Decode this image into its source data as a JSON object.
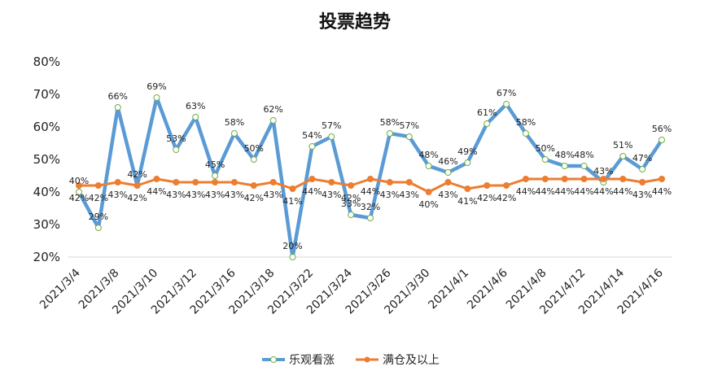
{
  "chart_data": {
    "type": "line",
    "title": "投票趋势",
    "xlabel": "",
    "ylabel": "",
    "ylim": [
      20,
      80
    ],
    "y_ticks": [
      "20%",
      "30%",
      "40%",
      "50%",
      "60%",
      "70%",
      "80%"
    ],
    "x_tick_labels": [
      "2021/3/4",
      "2021/3/8",
      "2021/3/10",
      "2021/3/12",
      "2021/3/16",
      "2021/3/18",
      "2021/3/22",
      "2021/3/24",
      "2021/3/26",
      "2021/3/30",
      "2021/4/1",
      "2021/4/6",
      "2021/4/8",
      "2021/4/12",
      "2021/4/14",
      "2021/4/16"
    ],
    "grid": false,
    "legend_position": "bottom",
    "series": [
      {
        "name": "乐观看涨",
        "color": "#5b9bd5",
        "values": [
          40,
          29,
          66,
          42,
          69,
          53,
          63,
          45,
          58,
          50,
          62,
          20,
          54,
          57,
          33,
          32,
          58,
          57,
          48,
          46,
          49,
          61,
          67,
          58,
          50,
          48,
          48,
          43,
          51,
          47,
          56
        ],
        "labels": [
          "40%",
          "29%",
          "66%",
          "42%",
          "69%",
          "53%",
          "63%",
          "45%",
          "58%",
          "50%",
          "62%",
          "20%",
          "54%",
          "57%",
          "33%",
          "32%",
          "58%",
          "57%",
          "48%",
          "46%",
          "49%",
          "61%",
          "67%",
          "58%",
          "50%",
          "48%",
          "48%",
          "43%",
          "51%",
          "47%",
          "56%"
        ]
      },
      {
        "name": "满仓及以上",
        "color": "#ed7d31",
        "values": [
          42,
          42,
          43,
          42,
          44,
          43,
          43,
          43,
          43,
          42,
          43,
          41,
          44,
          43,
          42,
          44,
          43,
          43,
          40,
          43,
          41,
          42,
          42,
          44,
          44,
          44,
          44,
          44,
          44,
          43,
          44
        ],
        "labels": [
          "42%",
          "42%",
          "43%",
          "42%",
          "44%",
          "43%",
          "43%",
          "43%",
          "43%",
          "42%",
          "43%",
          "41%",
          "44%",
          "43%",
          "42%",
          "44%",
          "43%",
          "43%",
          "40%",
          "43%",
          "41%",
          "42%",
          "42%",
          "44%",
          "44%",
          "44%",
          "44%",
          "44%",
          "44%",
          "43%",
          "44%"
        ]
      }
    ]
  }
}
